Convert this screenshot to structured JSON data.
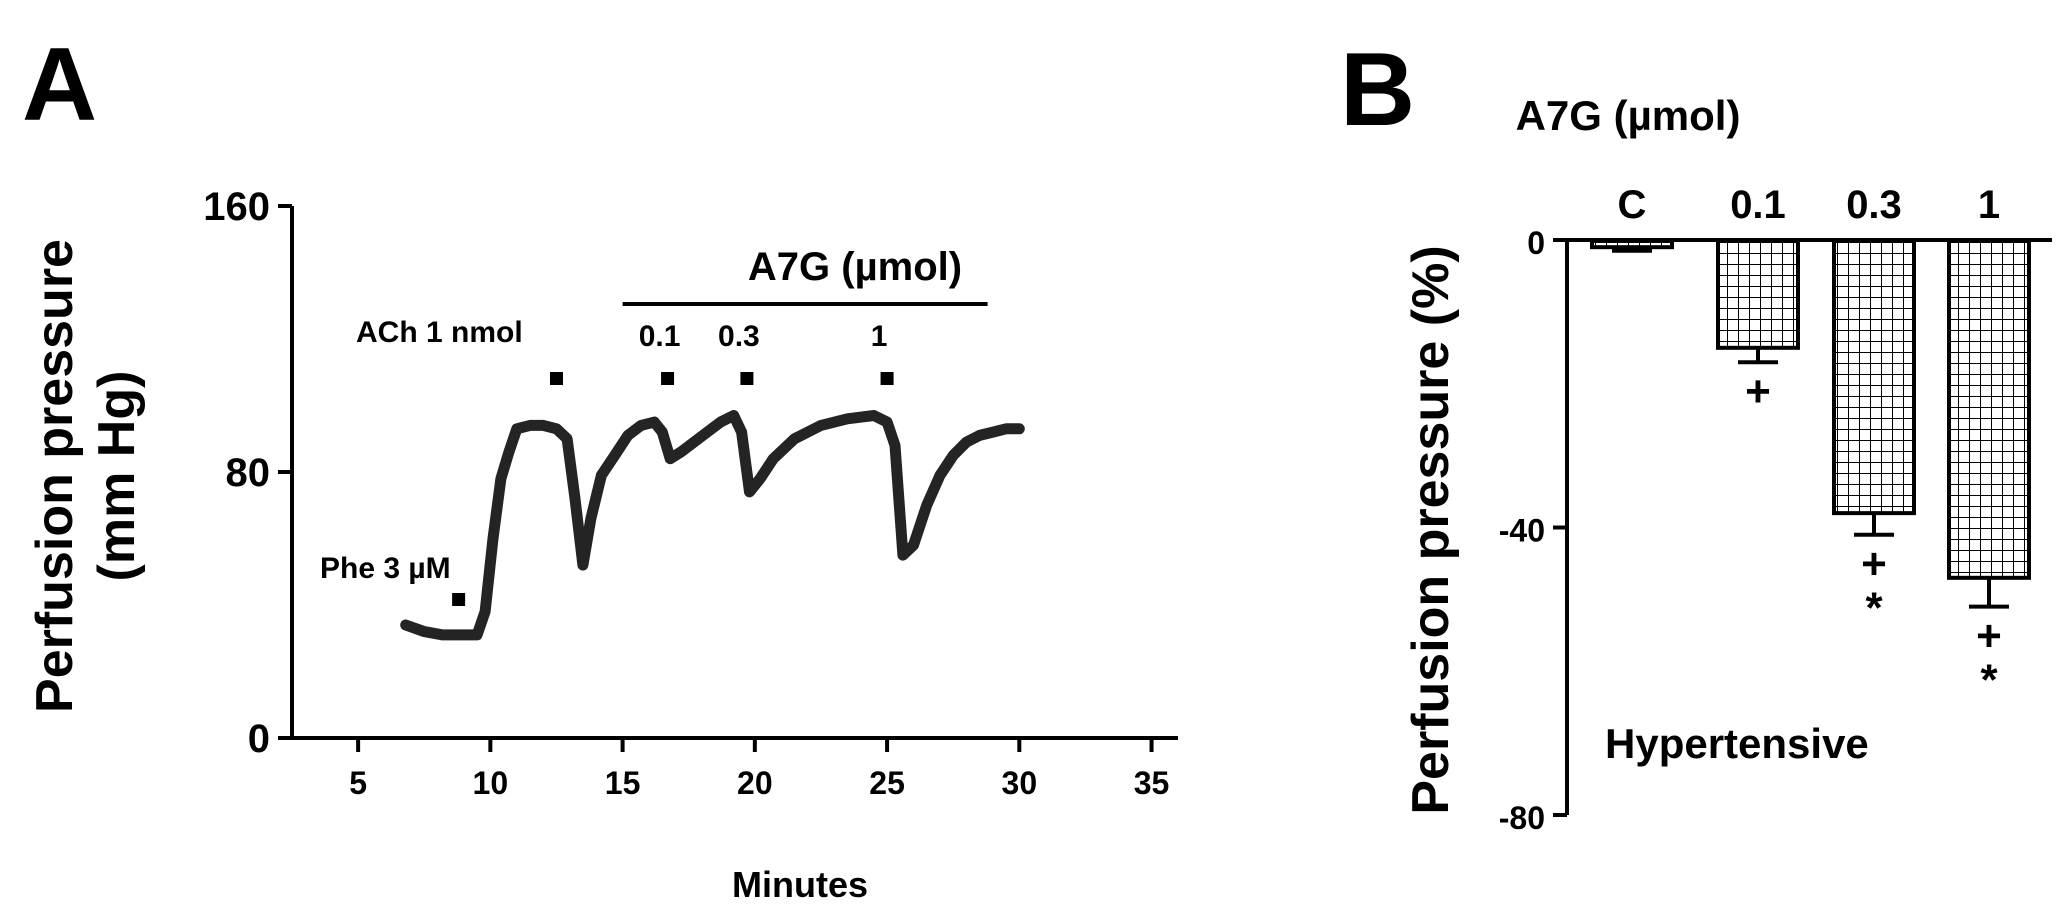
{
  "panels": {
    "a_label": "A",
    "b_label": "B"
  },
  "chart_data": [
    {
      "panel": "A",
      "type": "line",
      "xlabel": "Minutes",
      "ylabel": "Perfusion pressure",
      "ylabel_unit": "(mm Hg)",
      "xlim": [
        2.5,
        36
      ],
      "ylim": [
        0,
        160
      ],
      "x_ticks": [
        5,
        10,
        15,
        20,
        25,
        30,
        35
      ],
      "x_tick_labels": [
        "5",
        "10",
        "15",
        "20",
        "25",
        "30",
        "35"
      ],
      "y_ticks": [
        0,
        80,
        160
      ],
      "y_tick_labels": [
        "0",
        "80",
        "160"
      ],
      "series": [
        {
          "x": [
            6.8,
            7.5,
            8.2,
            9.0,
            9.5,
            9.8,
            10.1,
            10.4,
            10.7,
            11.0,
            11.5,
            12.0,
            12.5,
            12.9,
            13.2,
            13.5,
            13.8,
            14.2,
            14.7,
            15.2,
            15.7,
            16.2,
            16.5,
            16.8,
            17.2,
            17.7,
            18.2,
            18.7,
            19.2,
            19.5,
            19.8,
            20.2,
            20.7,
            21.5,
            22.5,
            23.5,
            24.5,
            25.0,
            25.3,
            25.6,
            26.0,
            26.5,
            27.0,
            27.5,
            28.0,
            28.5,
            29.0,
            29.5,
            30.0
          ],
          "y": [
            34,
            32,
            31,
            31,
            31,
            38,
            60,
            78,
            86,
            93,
            94,
            94,
            93,
            90,
            72,
            52,
            66,
            79,
            85,
            91,
            94,
            95,
            92,
            84,
            86,
            89,
            92,
            95,
            97,
            92,
            74,
            78,
            84,
            90,
            94,
            96,
            97,
            95,
            88,
            55,
            58,
            70,
            79,
            85,
            89,
            91,
            92,
            93,
            93
          ]
        }
      ],
      "annotations": {
        "phe": "Phe 3 µM",
        "ach": "ACh 1 nmol",
        "a7g_header": "A7G (µmol)",
        "doses": [
          "0.1",
          "0.3",
          "1"
        ]
      },
      "markers": {
        "phe_x": 8.8,
        "ach_x": 12.5,
        "a7g_dose_x": [
          16.7,
          19.7,
          25.0
        ],
        "a7g_bar_x": [
          15.0,
          28.8
        ]
      }
    },
    {
      "panel": "B",
      "type": "bar",
      "title": "A7G (µmol)",
      "ylabel": "Perfusion pressure (%)",
      "ylim": [
        -80,
        0
      ],
      "y_ticks": [
        0,
        -40,
        -80
      ],
      "y_tick_labels": [
        "0",
        "-40",
        "-80"
      ],
      "categories": [
        "C",
        "0.1",
        "0.3",
        "1"
      ],
      "values": [
        -1,
        -15,
        -38,
        -47
      ],
      "errors": [
        0.5,
        2,
        3,
        4
      ],
      "significance": [
        [],
        [
          "+"
        ],
        [
          "+",
          "*"
        ],
        [
          "+",
          "*"
        ]
      ],
      "annotation": "Hypertensive",
      "colors": {
        "bar_fill": "#ffffff",
        "hatch": "#000000",
        "axis": "#000000"
      }
    }
  ]
}
